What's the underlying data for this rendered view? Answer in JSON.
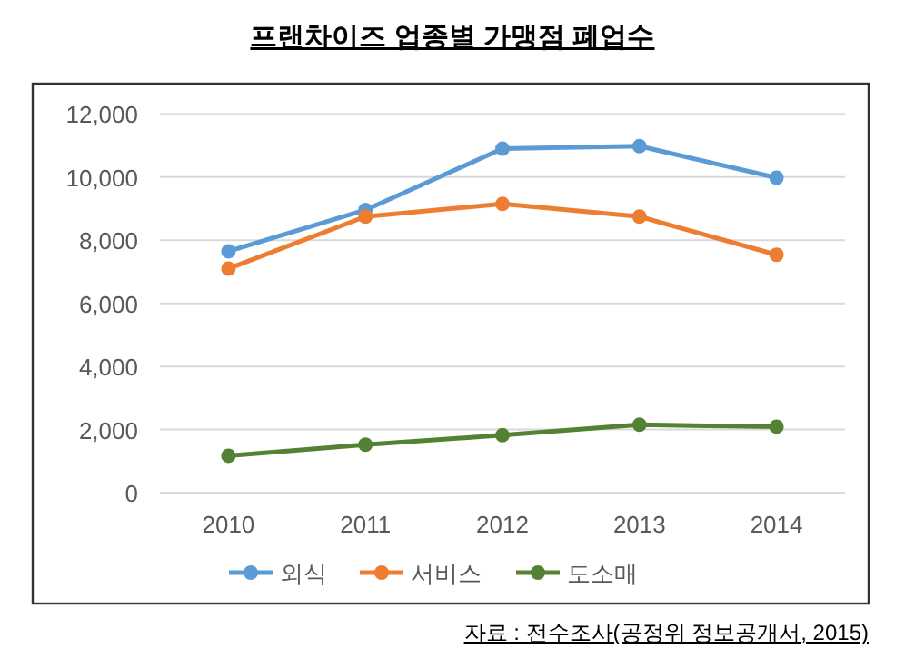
{
  "chart_data": {
    "type": "line",
    "title": "프랜차이즈 업종별 가맹점 폐업수",
    "categories": [
      "2010",
      "2011",
      "2012",
      "2013",
      "2014"
    ],
    "series": [
      {
        "name": "외식",
        "color": "#5b9bd5",
        "values": [
          7650,
          8960,
          10900,
          10980,
          9980
        ]
      },
      {
        "name": "서비스",
        "color": "#ed7d31",
        "values": [
          7100,
          8750,
          9150,
          8750,
          7540
        ]
      },
      {
        "name": "도소매",
        "color": "#548235",
        "values": [
          1170,
          1520,
          1820,
          2150,
          2090
        ]
      }
    ],
    "ylim": [
      0,
      12000
    ],
    "yticks": [
      {
        "value": 0,
        "label": "0"
      },
      {
        "value": 2000,
        "label": "2,000"
      },
      {
        "value": 4000,
        "label": "4,000"
      },
      {
        "value": 6000,
        "label": "6,000"
      },
      {
        "value": 8000,
        "label": "8,000"
      },
      {
        "value": 10000,
        "label": "10,000"
      },
      {
        "value": 12000,
        "label": "12,000"
      }
    ],
    "grid": "y",
    "legend": "bottom",
    "marker": "circle",
    "line_style": "solid",
    "annotations": [
      "자료 : 전수조사(공정위 정보공개서, 2015)"
    ]
  }
}
